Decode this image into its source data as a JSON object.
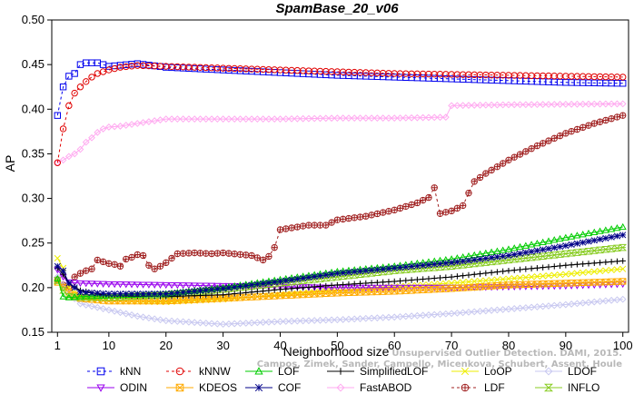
{
  "chart_data": {
    "type": "line",
    "title": "SpamBase_20_v06",
    "xlabel": "Neighborhood size",
    "ylabel": "AP",
    "xlim": [
      0,
      101
    ],
    "ylim": [
      0.15,
      0.5
    ],
    "xticks": [
      1,
      10,
      20,
      30,
      40,
      50,
      60,
      70,
      80,
      90,
      100
    ],
    "yticks": [
      "0.15",
      "0.20",
      "0.25",
      "0.30",
      "0.35",
      "0.40",
      "0.45",
      "0.50"
    ],
    "legend_position": "bottom",
    "watermark": {
      "line1": "Unsupervised Outlier Detection. DAMI, 2015.",
      "line2": "Campos, Zimek, Sander, Campello, Micenkova, Schubert, Assent, Houle"
    },
    "series": [
      {
        "name": "kNN",
        "color": "#0000ee",
        "marker": "square",
        "dashed": true,
        "points": [
          [
            1,
            0.393
          ],
          [
            2,
            0.425
          ],
          [
            3,
            0.437
          ],
          [
            4,
            0.44
          ],
          [
            5,
            0.45
          ],
          [
            6,
            0.452
          ],
          [
            7,
            0.452
          ],
          [
            8,
            0.452
          ],
          [
            10,
            0.448
          ],
          [
            15,
            0.451
          ],
          [
            20,
            0.447
          ],
          [
            30,
            0.444
          ],
          [
            40,
            0.441
          ],
          [
            50,
            0.438
          ],
          [
            60,
            0.436
          ],
          [
            70,
            0.434
          ],
          [
            80,
            0.432
          ],
          [
            90,
            0.43
          ],
          [
            100,
            0.429
          ]
        ]
      },
      {
        "name": "kNNW",
        "color": "#e00000",
        "marker": "circle",
        "dashed": true,
        "points": [
          [
            1,
            0.34
          ],
          [
            2,
            0.378
          ],
          [
            3,
            0.404
          ],
          [
            4,
            0.418
          ],
          [
            5,
            0.425
          ],
          [
            6,
            0.431
          ],
          [
            7,
            0.436
          ],
          [
            8,
            0.44
          ],
          [
            10,
            0.444
          ],
          [
            12,
            0.447
          ],
          [
            15,
            0.449
          ],
          [
            20,
            0.448
          ],
          [
            30,
            0.446
          ],
          [
            40,
            0.444
          ],
          [
            50,
            0.442
          ],
          [
            60,
            0.44
          ],
          [
            70,
            0.439
          ],
          [
            80,
            0.438
          ],
          [
            90,
            0.437
          ],
          [
            100,
            0.436
          ]
        ]
      },
      {
        "name": "LOF",
        "color": "#00cc00",
        "marker": "triangle",
        "dashed": false,
        "points": [
          [
            1,
            0.21
          ],
          [
            2,
            0.19
          ],
          [
            3,
            0.189
          ],
          [
            5,
            0.19
          ],
          [
            10,
            0.191
          ],
          [
            20,
            0.193
          ],
          [
            30,
            0.2
          ],
          [
            40,
            0.209
          ],
          [
            50,
            0.218
          ],
          [
            60,
            0.224
          ],
          [
            70,
            0.232
          ],
          [
            80,
            0.243
          ],
          [
            90,
            0.256
          ],
          [
            100,
            0.268
          ]
        ]
      },
      {
        "name": "SimplifiedLOF",
        "color": "#000000",
        "marker": "plus",
        "dashed": false,
        "points": [
          [
            1,
            0.222
          ],
          [
            2,
            0.215
          ],
          [
            3,
            0.205
          ],
          [
            5,
            0.197
          ],
          [
            8,
            0.193
          ],
          [
            10,
            0.191
          ],
          [
            20,
            0.19
          ],
          [
            30,
            0.192
          ],
          [
            40,
            0.198
          ],
          [
            50,
            0.203
          ],
          [
            60,
            0.207
          ],
          [
            70,
            0.212
          ],
          [
            80,
            0.219
          ],
          [
            90,
            0.225
          ],
          [
            100,
            0.23
          ]
        ]
      },
      {
        "name": "LoOP",
        "color": "#eeee00",
        "marker": "x",
        "dashed": false,
        "points": [
          [
            1,
            0.233
          ],
          [
            2,
            0.222
          ],
          [
            3,
            0.2
          ],
          [
            5,
            0.19
          ],
          [
            10,
            0.185
          ],
          [
            20,
            0.184
          ],
          [
            30,
            0.187
          ],
          [
            40,
            0.192
          ],
          [
            50,
            0.197
          ],
          [
            60,
            0.201
          ],
          [
            70,
            0.205
          ],
          [
            80,
            0.21
          ],
          [
            90,
            0.215
          ],
          [
            100,
            0.221
          ]
        ]
      },
      {
        "name": "LDOF",
        "color": "#c8c8f0",
        "marker": "diamond",
        "dashed": false,
        "points": [
          [
            1,
            0.212
          ],
          [
            3,
            0.193
          ],
          [
            5,
            0.182
          ],
          [
            10,
            0.175
          ],
          [
            15,
            0.168
          ],
          [
            20,
            0.163
          ],
          [
            25,
            0.161
          ],
          [
            30,
            0.159
          ],
          [
            40,
            0.162
          ],
          [
            50,
            0.164
          ],
          [
            60,
            0.167
          ],
          [
            70,
            0.171
          ],
          [
            80,
            0.176
          ],
          [
            90,
            0.181
          ],
          [
            100,
            0.187
          ]
        ]
      },
      {
        "name": "ODIN",
        "color": "#9900ee",
        "marker": "triangle-down",
        "dashed": false,
        "points": [
          [
            1,
            0.22
          ],
          [
            2,
            0.212
          ],
          [
            3,
            0.206
          ],
          [
            5,
            0.205
          ],
          [
            10,
            0.204
          ],
          [
            20,
            0.203
          ],
          [
            30,
            0.202
          ],
          [
            40,
            0.201
          ],
          [
            50,
            0.2
          ],
          [
            60,
            0.2
          ],
          [
            70,
            0.2
          ],
          [
            80,
            0.201
          ],
          [
            90,
            0.202
          ],
          [
            100,
            0.204
          ]
        ]
      },
      {
        "name": "KDEOS",
        "color": "#ffaa00",
        "marker": "boxed-x",
        "dashed": false,
        "points": [
          [
            1,
            0.206
          ],
          [
            3,
            0.195
          ],
          [
            5,
            0.188
          ],
          [
            10,
            0.185
          ],
          [
            20,
            0.185
          ],
          [
            30,
            0.188
          ],
          [
            40,
            0.191
          ],
          [
            50,
            0.194
          ],
          [
            60,
            0.196
          ],
          [
            70,
            0.199
          ],
          [
            80,
            0.203
          ],
          [
            90,
            0.205
          ],
          [
            100,
            0.207
          ]
        ]
      },
      {
        "name": "COF",
        "color": "#000088",
        "marker": "asterisk",
        "dashed": false,
        "points": [
          [
            1,
            0.224
          ],
          [
            2,
            0.219
          ],
          [
            3,
            0.205
          ],
          [
            5,
            0.195
          ],
          [
            10,
            0.193
          ],
          [
            20,
            0.193
          ],
          [
            30,
            0.199
          ],
          [
            40,
            0.207
          ],
          [
            50,
            0.216
          ],
          [
            60,
            0.222
          ],
          [
            70,
            0.228
          ],
          [
            80,
            0.236
          ],
          [
            90,
            0.247
          ],
          [
            100,
            0.259
          ]
        ]
      },
      {
        "name": "FastABOD",
        "color": "#ffaaf0",
        "marker": "diamond",
        "dashed": false,
        "points": [
          [
            1,
            0.34
          ],
          [
            2,
            0.343
          ],
          [
            3,
            0.347
          ],
          [
            4,
            0.35
          ],
          [
            5,
            0.355
          ],
          [
            6,
            0.363
          ],
          [
            7,
            0.368
          ],
          [
            8,
            0.374
          ],
          [
            9,
            0.378
          ],
          [
            10,
            0.38
          ],
          [
            12,
            0.381
          ],
          [
            15,
            0.384
          ],
          [
            18,
            0.387
          ],
          [
            20,
            0.389
          ],
          [
            40,
            0.389
          ],
          [
            50,
            0.39
          ],
          [
            60,
            0.39
          ],
          [
            69,
            0.391
          ],
          [
            70,
            0.404
          ],
          [
            80,
            0.405
          ],
          [
            100,
            0.406
          ]
        ]
      },
      {
        "name": "LDF",
        "color": "#a02020",
        "marker": "circle-plus",
        "dashed": true,
        "points": [
          [
            1,
            0.209
          ],
          [
            2,
            0.203
          ],
          [
            3,
            0.199
          ],
          [
            4,
            0.212
          ],
          [
            5,
            0.216
          ],
          [
            6,
            0.219
          ],
          [
            7,
            0.221
          ],
          [
            8,
            0.231
          ],
          [
            9,
            0.229
          ],
          [
            10,
            0.227
          ],
          [
            11,
            0.226
          ],
          [
            12,
            0.224
          ],
          [
            13,
            0.232
          ],
          [
            14,
            0.234
          ],
          [
            15,
            0.237
          ],
          [
            16,
            0.236
          ],
          [
            17,
            0.225
          ],
          [
            18,
            0.221
          ],
          [
            19,
            0.224
          ],
          [
            20,
            0.228
          ],
          [
            22,
            0.238
          ],
          [
            25,
            0.239
          ],
          [
            28,
            0.238
          ],
          [
            30,
            0.239
          ],
          [
            35,
            0.236
          ],
          [
            37,
            0.231
          ],
          [
            38,
            0.235
          ],
          [
            39,
            0.245
          ],
          [
            40,
            0.265
          ],
          [
            45,
            0.27
          ],
          [
            48,
            0.27
          ],
          [
            50,
            0.276
          ],
          [
            55,
            0.28
          ],
          [
            60,
            0.287
          ],
          [
            64,
            0.295
          ],
          [
            66,
            0.301
          ],
          [
            67,
            0.312
          ],
          [
            68,
            0.283
          ],
          [
            70,
            0.286
          ],
          [
            72,
            0.292
          ],
          [
            73,
            0.306
          ],
          [
            74,
            0.319
          ],
          [
            76,
            0.328
          ],
          [
            80,
            0.343
          ],
          [
            85,
            0.359
          ],
          [
            90,
            0.373
          ],
          [
            95,
            0.384
          ],
          [
            100,
            0.393
          ]
        ]
      },
      {
        "name": "INFLO",
        "color": "#88cc22",
        "marker": "hourglass",
        "dashed": false,
        "points": [
          [
            1,
            0.208
          ],
          [
            2,
            0.197
          ],
          [
            3,
            0.19
          ],
          [
            5,
            0.189
          ],
          [
            10,
            0.189
          ],
          [
            20,
            0.192
          ],
          [
            30,
            0.198
          ],
          [
            40,
            0.205
          ],
          [
            50,
            0.212
          ],
          [
            60,
            0.219
          ],
          [
            70,
            0.224
          ],
          [
            80,
            0.231
          ],
          [
            90,
            0.238
          ],
          [
            100,
            0.245
          ]
        ]
      }
    ]
  }
}
